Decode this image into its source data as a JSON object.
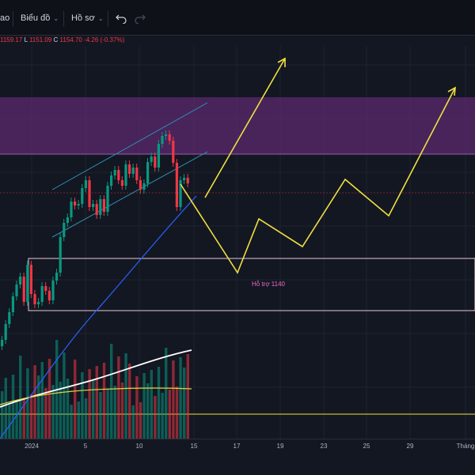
{
  "toolbar": {
    "cut_label": "ao",
    "chart_menu_label": "Biểu đồ",
    "profile_menu_label": "Hồ sơ",
    "undo_icon": "undo-icon",
    "redo_icon": "redo-icon",
    "chevron_icon": "chevron-down-icon"
  },
  "legend": {
    "high": "1159.17",
    "low_prefix": "L",
    "low": "1151.09",
    "close_prefix": "C",
    "close": "1154.70",
    "change": "-4.26 (-0.37%)"
  },
  "annotation": {
    "support_label": "Hỗ trợ 1140"
  },
  "xaxis": {
    "ticks": [
      "2024",
      "5",
      "10",
      "15",
      "17",
      "19",
      "23",
      "25",
      "29",
      "Tháng"
    ]
  },
  "colors": {
    "background": "#131722",
    "up": "#089981",
    "down": "#f23645",
    "zone": "#5b2a6e",
    "projection": "#f0e040",
    "channel": "#2d8fb0",
    "ma_blue": "#2962ff",
    "support_box": "#e8c8d8",
    "volume_ma_white": "#ffffff",
    "volume_ma_yellow": "#e6d33a"
  }
}
